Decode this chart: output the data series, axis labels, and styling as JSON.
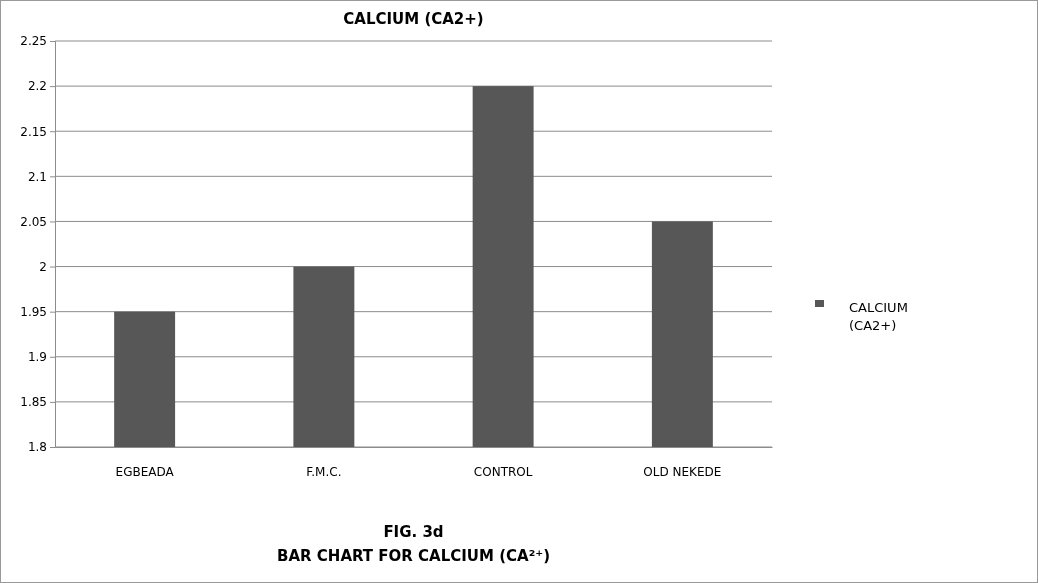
{
  "chart_data": {
    "type": "bar",
    "title": "CALCIUM (CA2+)",
    "categories": [
      "EGBEADA",
      "F.M.C.",
      "CONTROL",
      "OLD NEKEDE"
    ],
    "series": [
      {
        "name": "CALCIUM (CA2+)",
        "color": "#575757",
        "values": [
          1.95,
          2.0,
          2.2,
          2.05
        ]
      }
    ],
    "ylim": [
      1.8,
      2.25
    ],
    "yticks": [
      1.8,
      1.85,
      1.9,
      1.95,
      2,
      2.05,
      2.1,
      2.15,
      2.2,
      2.25
    ],
    "grid": "y",
    "legend": "right",
    "annotations": [
      "FIG. 3d",
      "BAR CHART FOR CALCIUM (CA²⁺)"
    ]
  }
}
